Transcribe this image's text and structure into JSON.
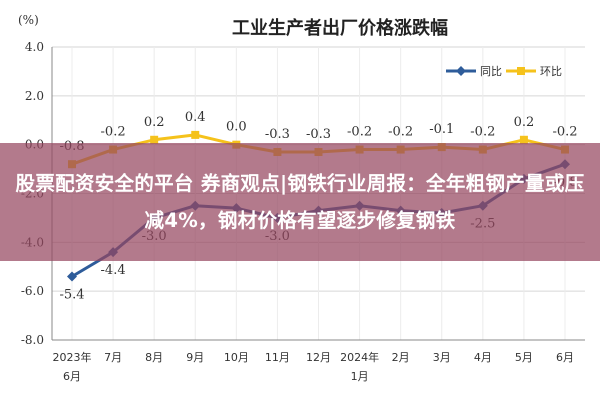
{
  "overlay": {
    "text": "股票配资安全的平台 券商观点|钢铁行业周报：全年粗钢产量或压减4%，钢材价格有望逐步修复钢铁"
  },
  "chart_data": {
    "type": "line",
    "title": "工业生产者出厂价格涨跌幅",
    "unit": "(%)",
    "ylim": [
      -8.0,
      4.0
    ],
    "yticks": [
      "4.0",
      "2.0",
      "0.0",
      "-2.0",
      "-4.0",
      "-6.0",
      "-8.0"
    ],
    "ytick_values": [
      4,
      2,
      0,
      -2,
      -4,
      -6,
      -8
    ],
    "categories": [
      [
        "2023年",
        "6月"
      ],
      [
        "7月"
      ],
      [
        "8月"
      ],
      [
        "9月"
      ],
      [
        "10月"
      ],
      [
        "11月"
      ],
      [
        "12月"
      ],
      [
        "2024年",
        "1月"
      ],
      [
        "2月"
      ],
      [
        "3月"
      ],
      [
        "4月"
      ],
      [
        "5月"
      ],
      [
        "6月"
      ]
    ],
    "grid": true,
    "legend_position": "top-right",
    "series": [
      {
        "name": "同比",
        "color": "#2e5c9a",
        "values": [
          -5.4,
          -4.4,
          -3.0,
          -2.5,
          -2.6,
          -3.0,
          -2.7,
          -2.5,
          -2.7,
          -2.8,
          -2.5,
          -1.4,
          -0.8
        ],
        "labels": [
          "-5.4",
          "-4.4",
          "-3.0",
          "",
          "",
          "-3.0",
          "",
          "",
          "",
          "",
          "-2.5",
          "",
          "-0.8"
        ]
      },
      {
        "name": "环比",
        "color": "#f5c21b",
        "values": [
          -0.8,
          -0.2,
          0.2,
          0.4,
          0.0,
          -0.3,
          -0.3,
          -0.2,
          -0.2,
          -0.1,
          -0.2,
          0.2,
          -0.2
        ],
        "labels": [
          "-0.8",
          "-0.2",
          "0.2",
          "0.4",
          "0.0",
          "-0.3",
          "-0.3",
          "-0.2",
          "-0.2",
          "-0.1",
          "-0.2",
          "0.2",
          "-0.2"
        ]
      }
    ]
  }
}
